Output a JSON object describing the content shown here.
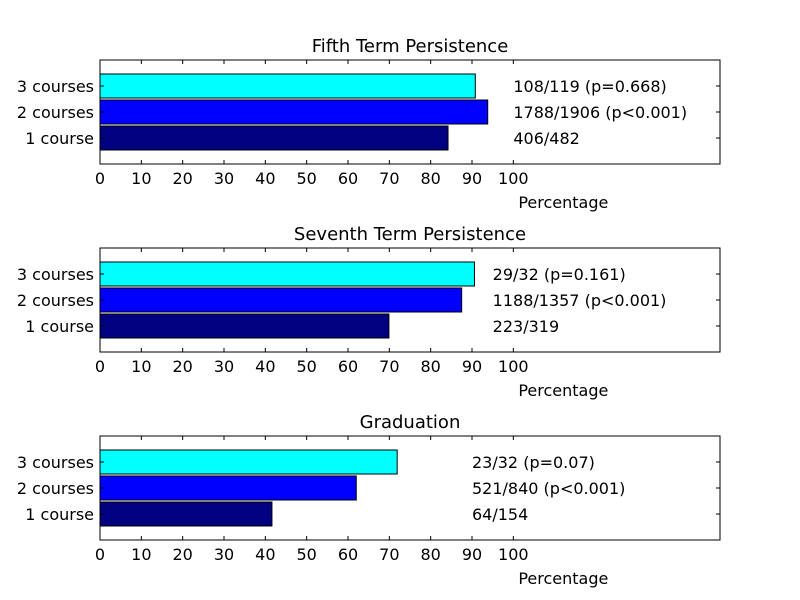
{
  "chart_data": [
    {
      "type": "bar",
      "orientation": "horizontal",
      "title": "Fifth Term Persistence",
      "xlabel": "Percentage",
      "ylabel": "",
      "xlim": [
        0,
        150
      ],
      "xticks": [
        "0",
        "10",
        "20",
        "30",
        "40",
        "50",
        "60",
        "70",
        "80",
        "90",
        "100"
      ],
      "categories": [
        "1 course",
        "2 courses",
        "3 courses"
      ],
      "values": [
        84.2,
        93.8,
        90.8
      ],
      "colors": [
        "#000080",
        "#0000ff",
        "#00ffff"
      ],
      "annotations": [
        "406/482",
        "1788/1906 (p<0.001)",
        "108/119 (p=0.668)"
      ],
      "annotation_x": 100,
      "grid": false
    },
    {
      "type": "bar",
      "orientation": "horizontal",
      "title": "Seventh Term Persistence",
      "xlabel": "Percentage",
      "ylabel": "",
      "xlim": [
        0,
        150
      ],
      "xticks": [
        "0",
        "10",
        "20",
        "30",
        "40",
        "50",
        "60",
        "70",
        "80",
        "90",
        "100"
      ],
      "categories": [
        "1 course",
        "2 courses",
        "3 courses"
      ],
      "values": [
        69.9,
        87.5,
        90.6
      ],
      "colors": [
        "#000080",
        "#0000ff",
        "#00ffff"
      ],
      "annotations": [
        "223/319",
        "1188/1357 (p<0.001)",
        "29/32 (p=0.161)"
      ],
      "annotation_x": 95,
      "grid": false
    },
    {
      "type": "bar",
      "orientation": "horizontal",
      "title": "Graduation",
      "xlabel": "Percentage",
      "ylabel": "",
      "xlim": [
        0,
        150
      ],
      "xticks": [
        "0",
        "10",
        "20",
        "30",
        "40",
        "50",
        "60",
        "70",
        "80",
        "90",
        "100"
      ],
      "categories": [
        "1 course",
        "2 courses",
        "3 courses"
      ],
      "values": [
        41.6,
        62.0,
        71.9
      ],
      "colors": [
        "#000080",
        "#0000ff",
        "#00ffff"
      ],
      "annotations": [
        "64/154",
        "521/840 (p<0.001)",
        "23/32 (p=0.07)"
      ],
      "annotation_x": 90,
      "grid": false
    }
  ]
}
